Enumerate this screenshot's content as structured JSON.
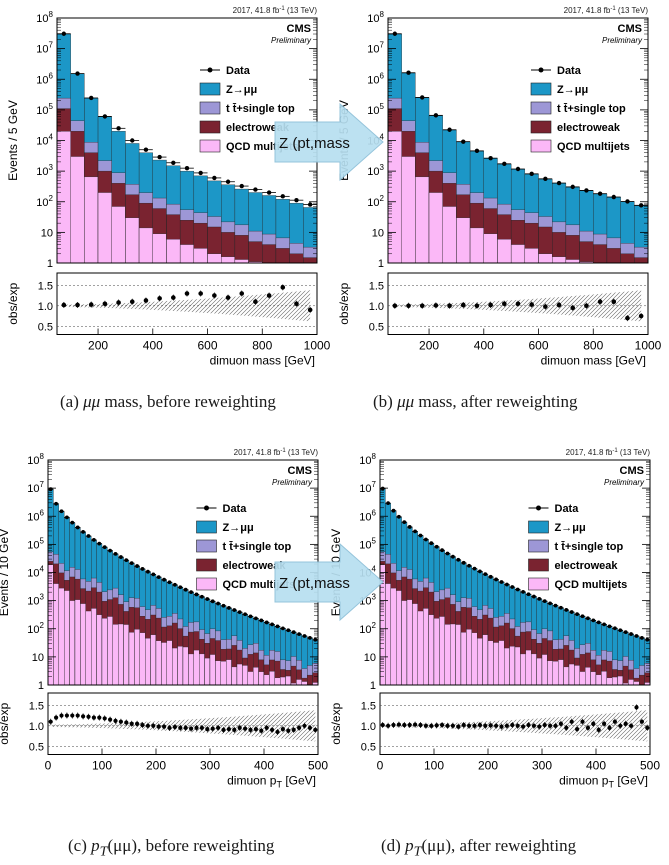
{
  "colors": {
    "z": "#1c97c7",
    "ttbar": "#9d97d6",
    "ew": "#7a2330",
    "qcd": "#fbb8f7",
    "data": "#000000",
    "arrow_fill": "#b7dff0",
    "arrow_stroke": "#8cbfd8"
  },
  "legend": {
    "data": "Data",
    "z": "Z→μμ",
    "ttbar": "t t̄+single top",
    "ew": "electroweak",
    "qcd": "QCD multijets"
  },
  "common": {
    "header": "2017, 41.8 fb",
    "header_sup": "-1",
    "header_energy": " (13 TeV)",
    "cms": "CMS",
    "preliminary": "Preliminary",
    "ratio_ylabel": "obs/exp",
    "arrow_label": "Z (pt,mass"
  },
  "chart_data": [
    {
      "type": "bar",
      "caption_prefix": "(a) ",
      "caption_var": "μμ",
      "caption_rest": " mass, before reweighting",
      "ylabel": "Events / 5 GeV",
      "xlabel": "dimuon mass [GeV]",
      "xlim": [
        50,
        1000
      ],
      "ylim": [
        1,
        100000000
      ],
      "log_y": true,
      "x_ticks": [
        200,
        400,
        600,
        800,
        1000
      ],
      "y_ticks": [
        "1",
        "10",
        "10^2",
        "10^3",
        "10^4",
        "10^5",
        "10^6",
        "10^7",
        "10^8"
      ],
      "ratio_ylim": [
        0.3,
        1.8
      ],
      "ratio_ticks": [
        0.5,
        1.0,
        1.5
      ],
      "bin_edges": [
        50,
        100,
        150,
        200,
        250,
        300,
        350,
        400,
        450,
        500,
        550,
        600,
        650,
        700,
        750,
        800,
        850,
        900,
        950,
        1000
      ],
      "stack_totals": [
        30000000,
        1500000,
        240000,
        60000,
        20000,
        8000,
        4000,
        2300,
        1500,
        1000,
        700,
        480,
        360,
        260,
        200,
        160,
        120,
        90,
        65
      ],
      "ew_tops": [
        110000,
        20000,
        4000,
        1000,
        400,
        170,
        90,
        60,
        38,
        25,
        20,
        15,
        10,
        8,
        5,
        4,
        3,
        2,
        1.5
      ],
      "qcd_tops": [
        20000,
        3000,
        650,
        200,
        70,
        30,
        14,
        9,
        6,
        4,
        3,
        2,
        1.6,
        1.3,
        1.1,
        1,
        1,
        1,
        1
      ],
      "ratio_x": [
        75,
        125,
        175,
        225,
        275,
        325,
        375,
        425,
        475,
        525,
        575,
        625,
        675,
        725,
        775,
        825,
        875,
        925,
        975
      ],
      "ratio_vals": [
        1.02,
        1.02,
        1.03,
        1.05,
        1.08,
        1.1,
        1.13,
        1.18,
        1.2,
        1.3,
        1.3,
        1.25,
        1.2,
        1.3,
        1.1,
        1.25,
        1.45,
        1.05,
        0.9
      ]
    },
    {
      "type": "bar",
      "caption_prefix": "(b) ",
      "caption_var": "μμ",
      "caption_rest": " mass, after reweighting",
      "ylabel": "Events / 5 GeV",
      "xlabel": "dimuon mass [GeV]",
      "xlim": [
        50,
        1000
      ],
      "ylim": [
        1,
        100000000
      ],
      "log_y": true,
      "x_ticks": [
        200,
        400,
        600,
        800,
        1000
      ],
      "y_ticks": [
        "1",
        "10",
        "10^2",
        "10^3",
        "10^4",
        "10^5",
        "10^6",
        "10^7",
        "10^8"
      ],
      "ratio_ylim": [
        0.3,
        1.8
      ],
      "ratio_ticks": [
        0.5,
        1.0,
        1.5
      ],
      "bin_edges": [
        50,
        100,
        150,
        200,
        250,
        300,
        350,
        400,
        450,
        500,
        550,
        600,
        650,
        700,
        750,
        800,
        850,
        900,
        950,
        1000
      ],
      "stack_totals": [
        30000000,
        1600000,
        250000,
        65000,
        22000,
        9000,
        4500,
        2600,
        1700,
        1150,
        800,
        550,
        400,
        300,
        230,
        180,
        140,
        100,
        75
      ],
      "ew_tops": [
        110000,
        20000,
        4000,
        1000,
        400,
        170,
        90,
        60,
        38,
        25,
        20,
        15,
        10,
        8,
        5,
        4,
        3,
        2,
        1.5
      ],
      "qcd_tops": [
        20000,
        3000,
        650,
        200,
        70,
        30,
        14,
        9,
        6,
        4,
        3,
        2,
        1.6,
        1.3,
        1.1,
        1,
        1,
        1,
        1
      ],
      "ratio_x": [
        75,
        125,
        175,
        225,
        275,
        325,
        375,
        425,
        475,
        525,
        575,
        625,
        675,
        725,
        775,
        825,
        875,
        925,
        975
      ],
      "ratio_vals": [
        1.0,
        1.0,
        1.0,
        1.01,
        1.0,
        1.02,
        1.0,
        1.02,
        1.05,
        1.05,
        1.03,
        0.98,
        1.02,
        0.95,
        1.0,
        1.1,
        1.1,
        0.7,
        0.75
      ]
    },
    {
      "type": "bar",
      "caption_prefix": "(c) ",
      "caption_var": "p",
      "caption_sub": "T",
      "caption_mid": "(μμ)",
      "caption_rest": ", before reweighting",
      "ylabel": "Events / 10 GeV",
      "xlabel": "dimuon p",
      "xlabel_sub": "T",
      "xlabel_unit": " [GeV]",
      "xlim": [
        0,
        500
      ],
      "ylim": [
        1,
        100000000
      ],
      "log_y": true,
      "x_ticks": [
        0,
        100,
        200,
        300,
        400,
        500
      ],
      "y_ticks": [
        "1",
        "10",
        "10^2",
        "10^3",
        "10^4",
        "10^5",
        "10^6",
        "10^7",
        "10^8"
      ],
      "ratio_ylim": [
        0.3,
        1.8
      ],
      "ratio_ticks": [
        0.5,
        1.0,
        1.5
      ],
      "stack_start": 9000000,
      "stack_end": 40,
      "ew_start": 25000,
      "ew_end": 2,
      "qcd_start": 15000,
      "qcd_end": 1,
      "nbins": 50,
      "ratio_x": [
        5,
        15,
        25,
        35,
        45,
        55,
        65,
        75,
        85,
        95,
        105,
        115,
        125,
        135,
        145,
        155,
        165,
        175,
        185,
        195,
        205,
        215,
        225,
        235,
        245,
        255,
        265,
        275,
        285,
        295,
        305,
        315,
        325,
        335,
        345,
        355,
        365,
        375,
        385,
        395,
        405,
        415,
        425,
        435,
        445,
        455,
        465,
        475,
        485,
        495
      ],
      "ratio_vals": [
        1.1,
        1.2,
        1.25,
        1.25,
        1.25,
        1.25,
        1.23,
        1.22,
        1.2,
        1.2,
        1.18,
        1.15,
        1.12,
        1.1,
        1.08,
        1.05,
        1.05,
        1.02,
        1.0,
        1.0,
        0.98,
        0.98,
        0.95,
        0.97,
        0.95,
        0.95,
        0.93,
        0.95,
        0.95,
        0.92,
        0.93,
        0.95,
        0.9,
        0.92,
        0.9,
        0.95,
        0.93,
        0.9,
        0.92,
        0.88,
        0.95,
        0.9,
        0.85,
        0.92,
        0.88,
        0.9,
        0.95,
        1.0,
        0.95,
        0.9
      ]
    },
    {
      "type": "bar",
      "caption_prefix": "(d) ",
      "caption_var": "p",
      "caption_sub": "T",
      "caption_mid": "(μμ)",
      "caption_rest": ", after reweighting",
      "ylabel": "Events / 10 GeV",
      "xlabel": "dimuon p",
      "xlabel_sub": "T",
      "xlabel_unit": " [GeV]",
      "xlim": [
        0,
        500
      ],
      "ylim": [
        1,
        100000000
      ],
      "log_y": true,
      "x_ticks": [
        0,
        100,
        200,
        300,
        400,
        500
      ],
      "y_ticks": [
        "1",
        "10",
        "10^2",
        "10^3",
        "10^4",
        "10^5",
        "10^6",
        "10^7",
        "10^8"
      ],
      "ratio_ylim": [
        0.3,
        1.8
      ],
      "ratio_ticks": [
        0.5,
        1.0,
        1.5
      ],
      "stack_start": 9500000,
      "stack_end": 40,
      "ew_start": 25000,
      "ew_end": 2,
      "qcd_start": 15000,
      "qcd_end": 1,
      "nbins": 50,
      "ratio_x": [
        5,
        15,
        25,
        35,
        45,
        55,
        65,
        75,
        85,
        95,
        105,
        115,
        125,
        135,
        145,
        155,
        165,
        175,
        185,
        195,
        205,
        215,
        225,
        235,
        245,
        255,
        265,
        275,
        285,
        295,
        305,
        315,
        325,
        335,
        345,
        355,
        365,
        375,
        385,
        395,
        405,
        415,
        425,
        435,
        445,
        455,
        465,
        475,
        485,
        495
      ],
      "ratio_vals": [
        1.02,
        1.0,
        1.02,
        1.03,
        1.02,
        1.02,
        1.03,
        1.02,
        1.0,
        1.0,
        1.01,
        1.02,
        1.0,
        1.0,
        0.98,
        1.02,
        1.0,
        1.0,
        1.02,
        1.0,
        1.01,
        1.0,
        0.98,
        1.0,
        1.02,
        1.0,
        0.98,
        1.02,
        1.0,
        0.98,
        1.02,
        1.0,
        1.0,
        1.05,
        0.95,
        1.1,
        0.92,
        1.1,
        0.95,
        1.05,
        0.9,
        1.05,
        0.95,
        1.1,
        1.0,
        1.05,
        1.0,
        1.45,
        1.1,
        0.95
      ]
    }
  ]
}
